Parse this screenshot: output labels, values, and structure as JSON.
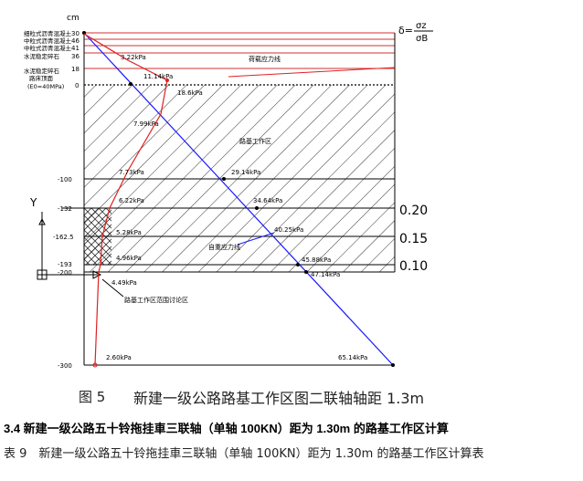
{
  "figure": {
    "unit": "cm",
    "formula": {
      "left": "δ=",
      "numerator": "σz",
      "denominator": "σB"
    },
    "layer_labels": [
      "细粒式沥青混凝土",
      "中粒式沥青混凝土",
      "中粒式沥青混凝土",
      "水泥稳定碎石",
      "水泥稳定碎石",
      "路床顶面",
      "(E0=40MPa)"
    ],
    "depth_labels_top": [
      "30",
      "46",
      "41",
      "36",
      "18",
      "0"
    ],
    "depth_labels_left": [
      "-100",
      "-132",
      "-162.5",
      "-193",
      "-200",
      "-300"
    ],
    "ratio_labels": [
      "0.20",
      "0.15",
      "0.10"
    ],
    "pressure_labels": [
      "3.22kPa",
      "11.14kPa",
      "18.6kPa",
      "7.99kPa",
      "7.73kPa",
      "6.22kPa",
      "5.28kPa",
      "4.96kPa",
      "4.49kPa",
      "2.60kPa",
      "29.14kPa",
      "34.64kPa",
      "40.25kPa",
      "45.88kPa",
      "47.14kPa",
      "65.14kPa"
    ],
    "annotations": {
      "load_stress": "荷载应力线",
      "subgrade_zone": "路基工作区",
      "self_weight": "自重应力线",
      "discussion_zone": "路基工作区范围讨论区",
      "axis_y": "Y"
    }
  },
  "caption": {
    "number": "图 5",
    "title": "新建一级公路路基工作区图二联轴轴距 1.3m"
  },
  "section_heading": "3.4 新建一级公路五十铃拖挂車三联轴（单轴 100KN）距为 1.30m 的路基工作区计算",
  "table_caption": "表 9　新建一级公路五十铃拖挂車三联轴（单轴 100KN）距为 1.30m 的路基工作区计算表",
  "colors": {
    "self_weight_line": "#1a1aff",
    "load_line": "#e02020",
    "grid": "#000000",
    "background": "#ffffff"
  }
}
